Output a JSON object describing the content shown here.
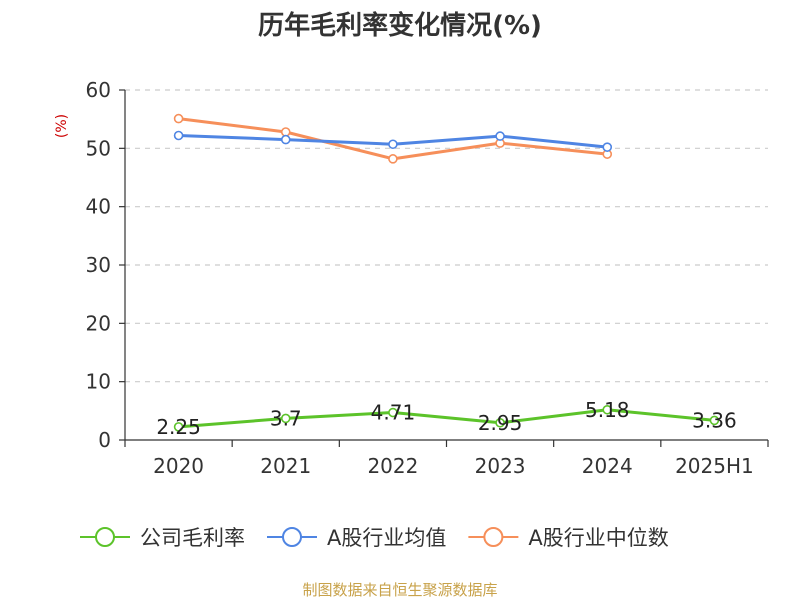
{
  "chart_data": {
    "type": "line",
    "title": "历年毛利率变化情况(%)",
    "yunit": "(%)",
    "ylim": [
      0,
      60
    ],
    "yticks": [
      "0",
      "10",
      "20",
      "30",
      "40",
      "50",
      "60"
    ],
    "categories": [
      "2020",
      "2021",
      "2022",
      "2023",
      "2024",
      "2025H1"
    ],
    "grid": true,
    "legend": "bottom",
    "series": [
      {
        "name": "公司毛利率",
        "color": "#5cc32a",
        "values": [
          2.25,
          3.7,
          4.71,
          2.95,
          5.18,
          3.36
        ],
        "labels": [
          "2.25",
          "3.7",
          "4.71",
          "2.95",
          "5.18",
          "3.36"
        ]
      },
      {
        "name": "A股行业均值",
        "color": "#4f85e3",
        "values": [
          52.2,
          51.5,
          50.7,
          52.1,
          50.2,
          null
        ]
      },
      {
        "name": "A股行业中位数",
        "color": "#f68f5a",
        "values": [
          55.1,
          52.8,
          48.2,
          50.9,
          49.0,
          null
        ]
      }
    ]
  },
  "source": "制图数据来自恒生聚源数据库"
}
